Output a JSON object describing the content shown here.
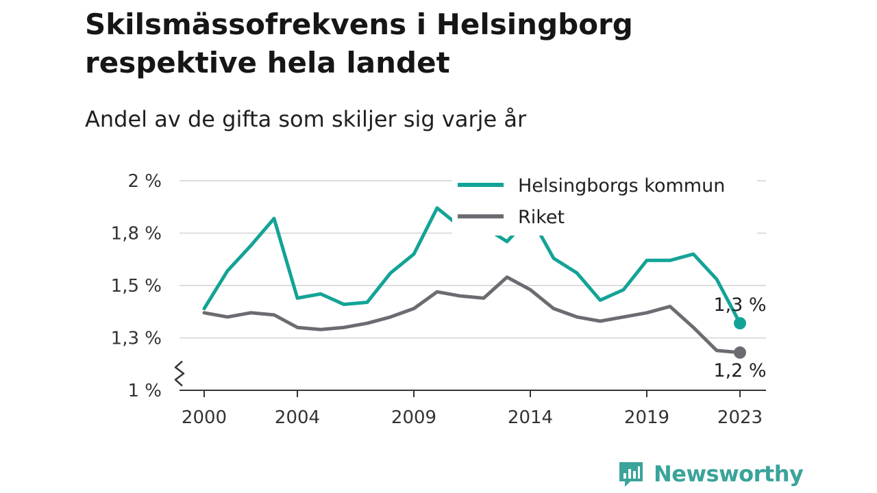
{
  "page": {
    "title": "Skilsmässofrekvens i Helsingborg respektive hela landet",
    "subtitle": "Andel av de gifta som skiljer sig varje år",
    "brand": "Newsworthy"
  },
  "chart_data": {
    "type": "line",
    "title": "Skilsmässofrekvens i Helsingborg respektive hela landet",
    "subtitle": "Andel av de gifta som skiljer sig varje år",
    "xlabel": "",
    "ylabel": "",
    "x": [
      2000,
      2001,
      2002,
      2003,
      2004,
      2005,
      2006,
      2007,
      2008,
      2009,
      2010,
      2011,
      2012,
      2013,
      2014,
      2015,
      2016,
      2017,
      2018,
      2019,
      2020,
      2021,
      2022,
      2023
    ],
    "x_ticks": [
      2000,
      2004,
      2009,
      2014,
      2019,
      2023
    ],
    "y_ticks": [
      1.0,
      1.25,
      1.5,
      1.75,
      2.0
    ],
    "y_tick_labels": [
      "1 %",
      "1,3 %",
      "1,5 %",
      "1,8 %",
      "2 %"
    ],
    "ylim": [
      1.0,
      2.0
    ],
    "axis_break": true,
    "grid": "horizontal",
    "legend": "top-right",
    "series": [
      {
        "name": "Helsingborgs kommun",
        "color": "#13a396",
        "values": [
          1.39,
          1.57,
          1.69,
          1.82,
          1.44,
          1.46,
          1.41,
          1.42,
          1.56,
          1.65,
          1.87,
          1.78,
          1.78,
          1.71,
          1.83,
          1.63,
          1.56,
          1.43,
          1.48,
          1.62,
          1.62,
          1.65,
          1.53,
          1.32
        ],
        "end_label": "1,3 %"
      },
      {
        "name": "Riket",
        "color": "#6b6b72",
        "values": [
          1.37,
          1.35,
          1.37,
          1.36,
          1.3,
          1.29,
          1.3,
          1.32,
          1.35,
          1.39,
          1.47,
          1.45,
          1.44,
          1.54,
          1.48,
          1.39,
          1.35,
          1.33,
          1.35,
          1.37,
          1.4,
          1.3,
          1.19,
          1.18
        ],
        "end_label": "1,2 %"
      }
    ]
  }
}
